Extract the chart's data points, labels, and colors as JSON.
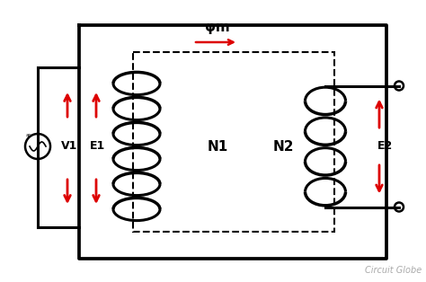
{
  "bg_color": "#ffffff",
  "line_color": "#000000",
  "red_color": "#dd0000",
  "watermark": "Circuit Globe",
  "phi_label": "φm",
  "N1_label": "N1",
  "N2_label": "N2",
  "V1_label": "V1",
  "E1_label": "E1",
  "E2_label": "E2",
  "figsize": [
    4.74,
    3.14
  ],
  "dpi": 100
}
